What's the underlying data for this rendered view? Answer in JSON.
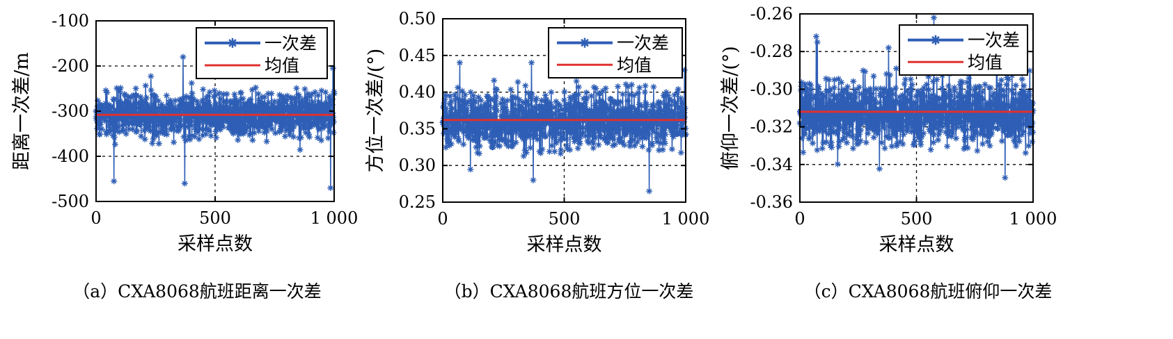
{
  "chart_data": [
    {
      "type": "line",
      "caption": "（a）CXA8068航班距离一次差",
      "xlabel": "采样点数",
      "ylabel": "距离一次差/m",
      "xlim": [
        0,
        1000
      ],
      "ylim": [
        -500,
        -100
      ],
      "x_ticks": [
        0,
        500,
        1000
      ],
      "x_tick_labels": [
        "0",
        "500",
        "1 000"
      ],
      "y_ticks": [
        -100,
        -200,
        -300,
        -400,
        -500
      ],
      "y_tick_labels": [
        "-100",
        "-200",
        "-300",
        "-400",
        "-500"
      ],
      "grid": "dashed",
      "legend_position": "top-right",
      "n_points": 1000,
      "series": [
        {
          "name": "一次差",
          "color": "#2e5eb5",
          "marker": "asterisk",
          "noise_amplitude": 40,
          "min": -470,
          "max": -180,
          "spikes": [
            [
              75,
              -455
            ],
            [
              365,
              -180
            ],
            [
              372,
              -460
            ],
            [
              985,
              -470
            ],
            [
              995,
              -205
            ]
          ]
        },
        {
          "name": "均值",
          "color": "#e0302f",
          "constant": -308
        }
      ]
    },
    {
      "type": "line",
      "caption": "（b）CXA8068航班方位一次差",
      "xlabel": "采样点数",
      "ylabel": "方位一次差/(°)",
      "xlim": [
        0,
        1000
      ],
      "ylim": [
        0.25,
        0.5
      ],
      "x_ticks": [
        0,
        500,
        1000
      ],
      "x_tick_labels": [
        "0",
        "500",
        "1 000"
      ],
      "y_ticks": [
        0.5,
        0.45,
        0.4,
        0.35,
        0.3,
        0.25
      ],
      "y_tick_labels": [
        "0.50",
        "0.45",
        "0.40",
        "0.35",
        "0.30",
        "0.25"
      ],
      "grid": "dashed",
      "legend_position": "top-right",
      "n_points": 1000,
      "series": [
        {
          "name": "一次差",
          "color": "#2e5eb5",
          "marker": "asterisk",
          "noise_amplitude": 0.032,
          "min": 0.265,
          "max": 0.44,
          "spikes": [
            [
              70,
              0.44
            ],
            [
              365,
              0.44
            ],
            [
              372,
              0.28
            ],
            [
              850,
              0.265
            ],
            [
              995,
              0.43
            ]
          ]
        },
        {
          "name": "均值",
          "color": "#e0302f",
          "constant": 0.362
        }
      ]
    },
    {
      "type": "line",
      "caption": "（c）CXA8068航班俯仰一次差",
      "xlabel": "采样点数",
      "ylabel": "俯仰一次差/(°)",
      "xlim": [
        0,
        1000
      ],
      "ylim": [
        -0.36,
        -0.26
      ],
      "x_ticks": [
        0,
        500,
        1000
      ],
      "x_tick_labels": [
        "0",
        "500",
        "1 000"
      ],
      "y_ticks": [
        -0.26,
        -0.28,
        -0.3,
        -0.32,
        -0.34,
        -0.36
      ],
      "y_tick_labels": [
        "-0.26",
        "-0.28",
        "-0.30",
        "-0.32",
        "-0.34",
        "-0.36"
      ],
      "grid": "dashed",
      "legend_position": "top-right",
      "n_points": 1000,
      "series": [
        {
          "name": "一次差",
          "color": "#2e5eb5",
          "marker": "asterisk",
          "noise_amplitude": 0.014,
          "min": -0.347,
          "max": -0.262,
          "spikes": [
            [
              70,
              -0.272
            ],
            [
              75,
              -0.275
            ],
            [
              380,
              -0.278
            ],
            [
              575,
              -0.262
            ],
            [
              880,
              -0.347
            ]
          ]
        },
        {
          "name": "均值",
          "color": "#e0302f",
          "constant": -0.312
        }
      ]
    }
  ]
}
